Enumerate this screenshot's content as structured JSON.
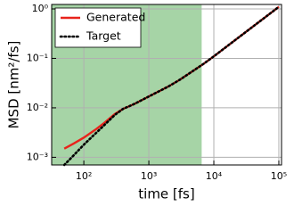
{
  "chart_data": {
    "type": "line",
    "xlabel": "time  [fs]",
    "ylabel": "MSD  [nm²/fs]",
    "x": [
      50,
      70,
      100,
      150,
      200,
      300,
      400,
      600,
      1000,
      2000,
      3000,
      5000,
      7000,
      10000,
      20000,
      50000,
      100000
    ],
    "series": [
      {
        "name": "Generated",
        "color": "#e8231b",
        "linestyle": "solid",
        "values": [
          0.0015,
          0.0019,
          0.0025,
          0.0036,
          0.0048,
          0.0075,
          0.0095,
          0.012,
          0.017,
          0.027,
          0.037,
          0.058,
          0.078,
          0.11,
          0.22,
          0.55,
          1.1
        ]
      },
      {
        "name": "Target",
        "color": "#000000",
        "linestyle": "dotted",
        "values": [
          0.0007,
          0.0011,
          0.0018,
          0.003,
          0.0043,
          0.0072,
          0.0095,
          0.012,
          0.017,
          0.027,
          0.037,
          0.058,
          0.078,
          0.11,
          0.22,
          0.55,
          1.1
        ]
      }
    ],
    "xscale": "log",
    "yscale": "log",
    "xlim": [
      32,
      110000
    ],
    "ylim": [
      0.0007,
      1.23
    ],
    "xticks": [
      {
        "value": 100,
        "label": "10²"
      },
      {
        "value": 1000,
        "label": "10³"
      },
      {
        "value": 10000,
        "label": "10⁴"
      },
      {
        "value": 100000,
        "label": "10⁵"
      }
    ],
    "yticks": [
      {
        "value": 0.001,
        "label": "10⁻³"
      },
      {
        "value": 0.01,
        "label": "10⁻²"
      },
      {
        "value": 0.1,
        "label": "10⁻¹"
      },
      {
        "value": 1,
        "label": "10⁰"
      }
    ],
    "grid": true,
    "legend": "upper left",
    "shade": {
      "x": [
        32,
        6500
      ],
      "color": "#a6d4a6"
    }
  }
}
